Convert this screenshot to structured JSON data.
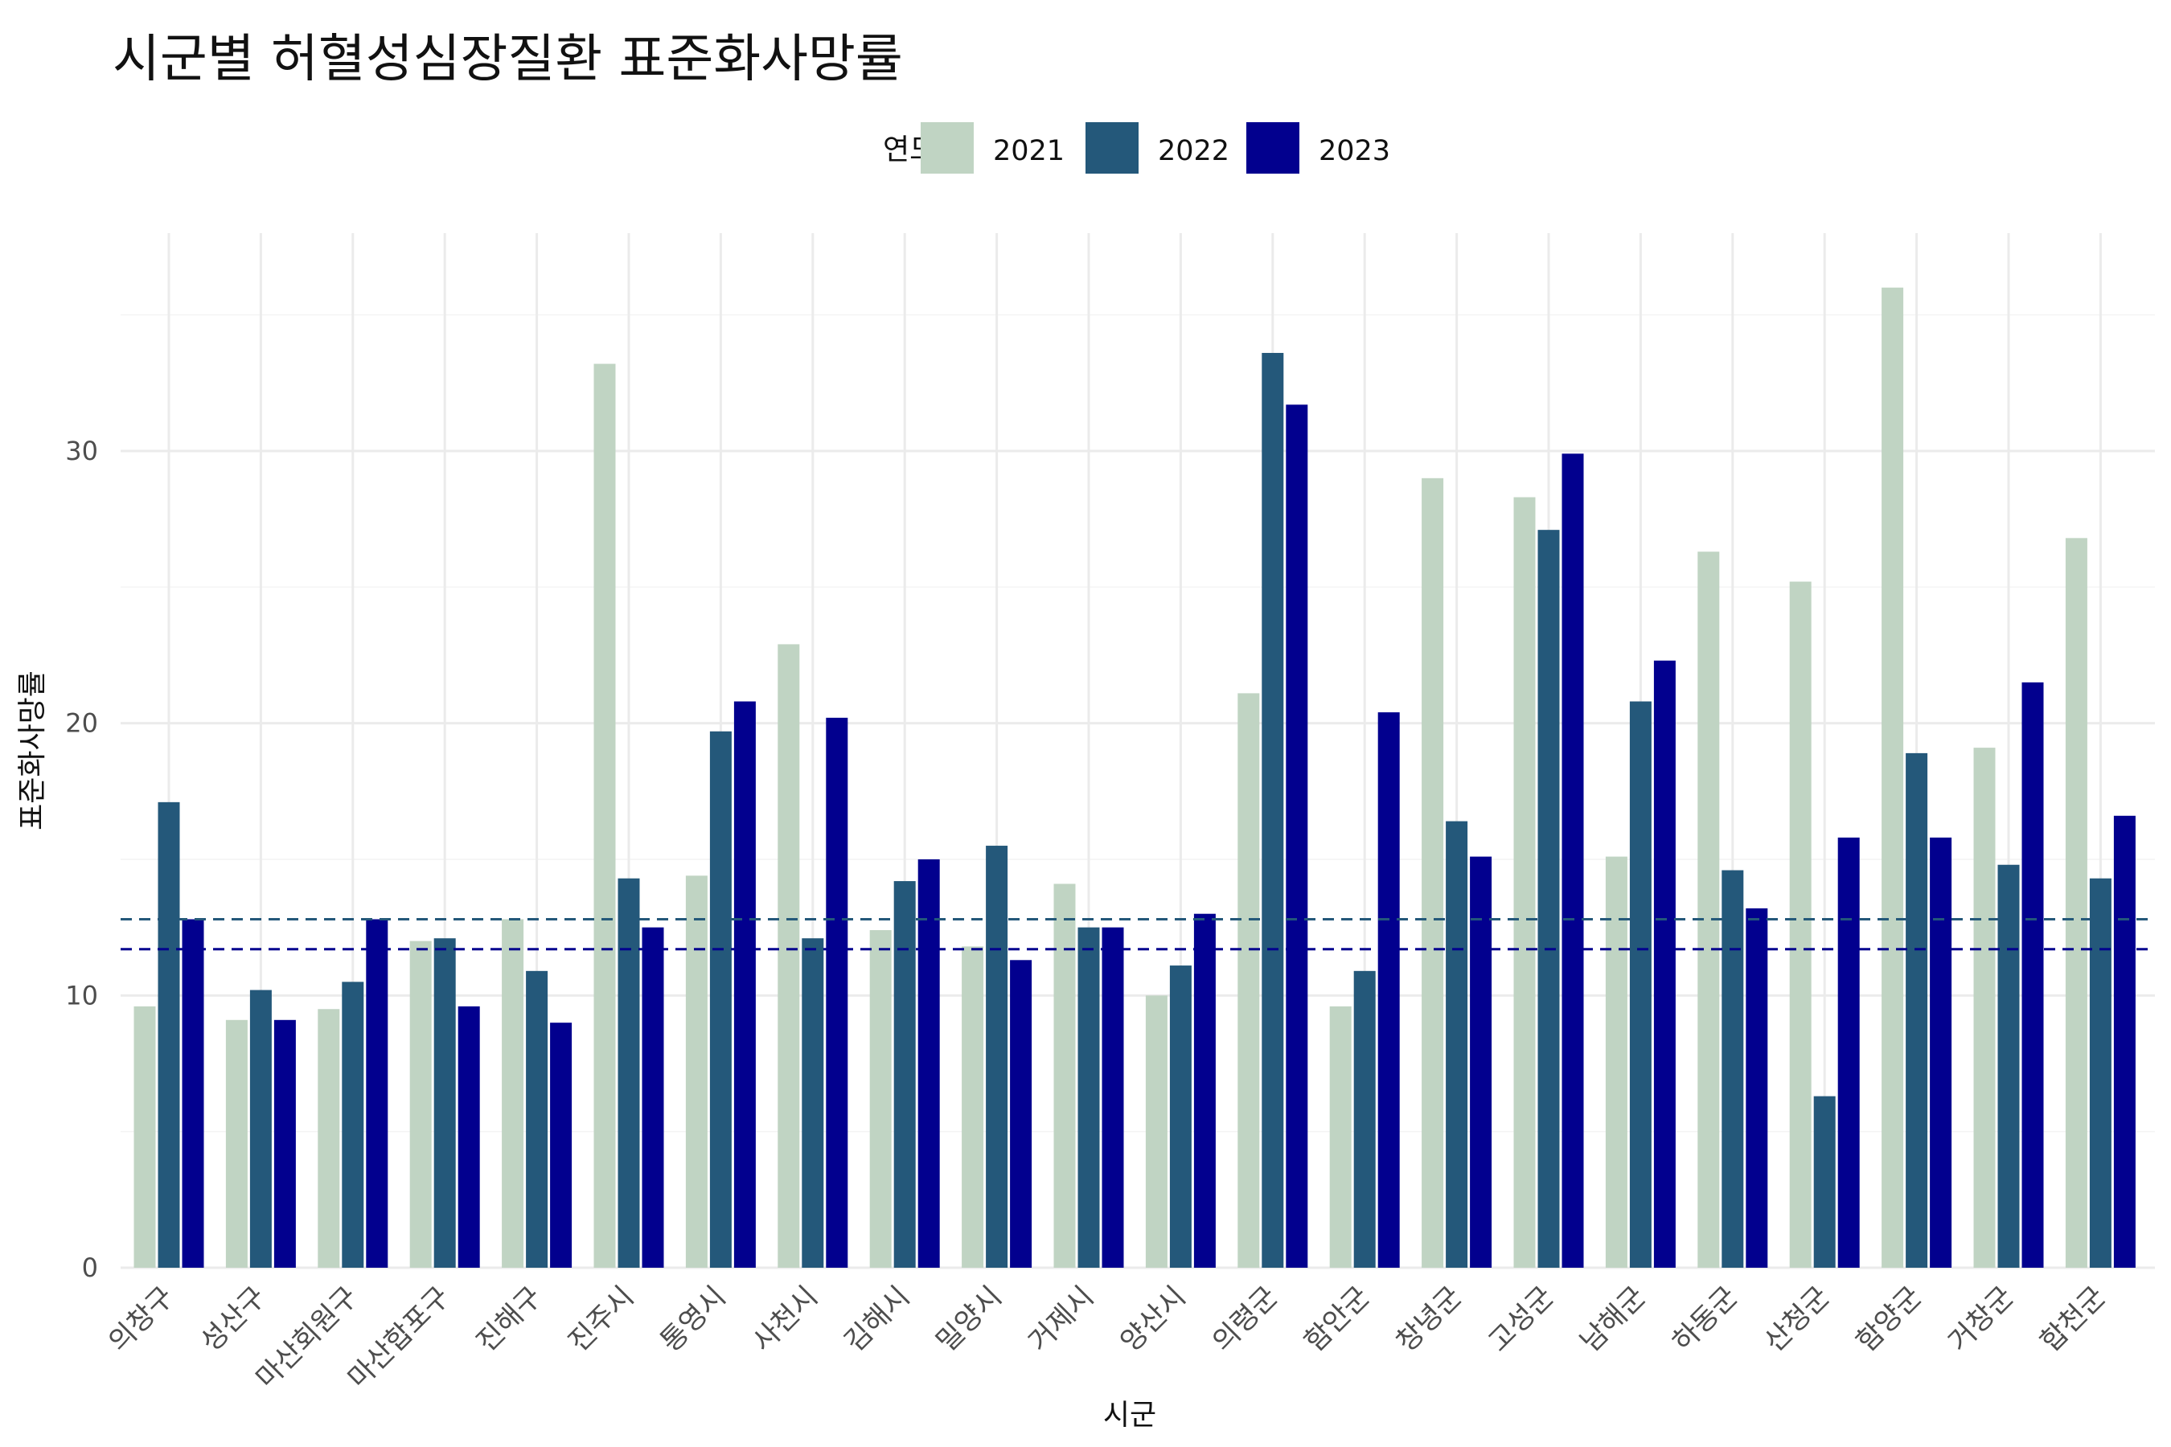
{
  "chart_data": {
    "type": "bar",
    "title": "시군별 허혈성심장질환 표준화사망률",
    "xlabel": "시군",
    "ylabel": "표준화사망률",
    "legend_title": "연도",
    "legend_position": "top",
    "grid": true,
    "ylim": [
      0,
      38
    ],
    "yticks": [
      0,
      10,
      20,
      30
    ],
    "categories": [
      "의창구",
      "성산구",
      "마산회원구",
      "마산합포구",
      "진해구",
      "진주시",
      "통영시",
      "사천시",
      "김해시",
      "밀양시",
      "거제시",
      "양산시",
      "의령군",
      "함안군",
      "창녕군",
      "고성군",
      "남해군",
      "하동군",
      "산청군",
      "함양군",
      "거창군",
      "합천군"
    ],
    "series": [
      {
        "name": "2021",
        "color": "#c0d4c3",
        "values": [
          9.6,
          9.1,
          9.5,
          12.0,
          12.8,
          33.2,
          14.4,
          22.9,
          12.4,
          11.8,
          14.1,
          10.0,
          21.1,
          9.6,
          29.0,
          28.3,
          15.1,
          26.3,
          25.2,
          36.0,
          19.1,
          26.8
        ]
      },
      {
        "name": "2022",
        "color": "#24587a",
        "values": [
          17.1,
          10.2,
          10.5,
          12.1,
          10.9,
          14.3,
          19.7,
          12.1,
          14.2,
          15.5,
          12.5,
          11.1,
          33.6,
          10.9,
          16.4,
          27.1,
          20.8,
          14.6,
          6.3,
          18.9,
          14.8,
          14.3
        ]
      },
      {
        "name": "2023",
        "color": "#02008e",
        "values": [
          12.8,
          9.1,
          12.8,
          9.6,
          9.0,
          12.5,
          20.8,
          20.2,
          15.0,
          11.3,
          12.5,
          13.0,
          31.7,
          20.4,
          15.1,
          29.9,
          22.3,
          13.2,
          15.8,
          15.8,
          21.5,
          16.6
        ]
      }
    ],
    "reference_lines": [
      {
        "value": 12.8,
        "color": "#24587a",
        "style": "dashed"
      },
      {
        "value": 11.7,
        "color": "#02008e",
        "style": "dashed"
      }
    ]
  }
}
